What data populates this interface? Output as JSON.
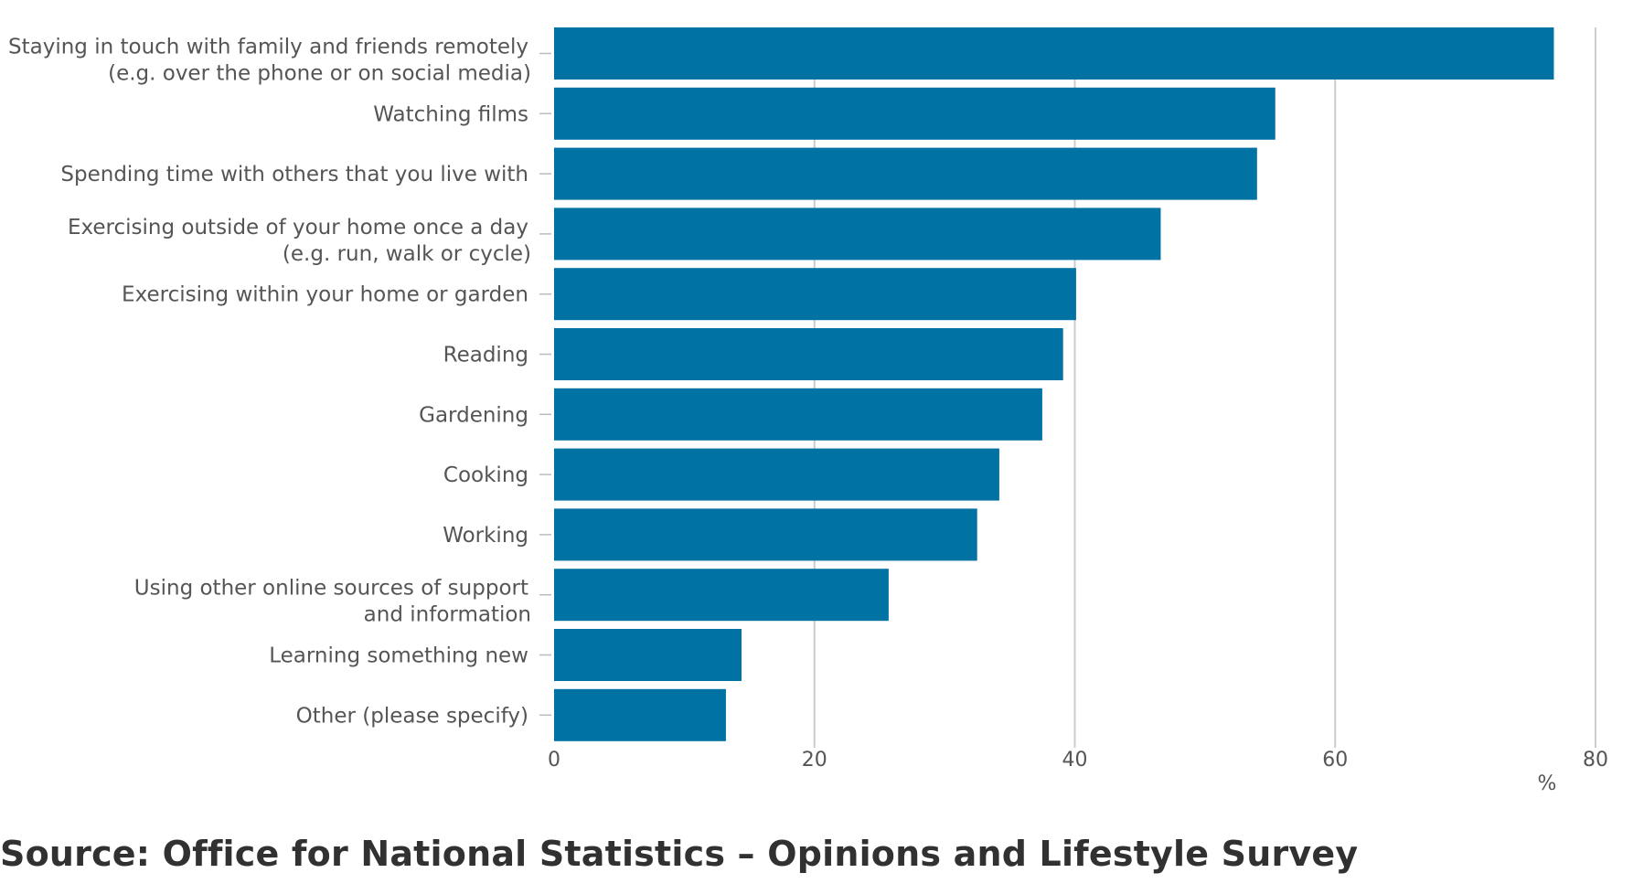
{
  "chart_data": {
    "type": "bar",
    "orientation": "horizontal",
    "categories": [
      [
        "Staying in touch with family and friends remotely",
        "(e.g. over the phone or on social media)"
      ],
      [
        "Watching films"
      ],
      [
        "Spending time with others that you live with"
      ],
      [
        "Exercising outside of your home once a day",
        "(e.g. run, walk or cycle)"
      ],
      [
        "Exercising within your home or garden"
      ],
      [
        "Reading"
      ],
      [
        "Gardening"
      ],
      [
        "Cooking"
      ],
      [
        "Working"
      ],
      [
        "Using other online sources of support",
        "and information"
      ],
      [
        "Learning something new"
      ],
      [
        "Other (please specify)"
      ]
    ],
    "values": [
      76.8,
      55.4,
      54.0,
      46.6,
      40.1,
      39.1,
      37.5,
      34.2,
      32.5,
      25.7,
      14.4,
      13.2
    ],
    "xlim": [
      0,
      80
    ],
    "xticks": [
      0,
      20,
      40,
      60,
      80
    ],
    "xlabel": "%",
    "bar_color": "#0072a4",
    "grid_color": "#cccccc",
    "grid": true
  },
  "source": {
    "text": "Source: Office for National Statistics – Opinions and Lifestyle Survey"
  }
}
